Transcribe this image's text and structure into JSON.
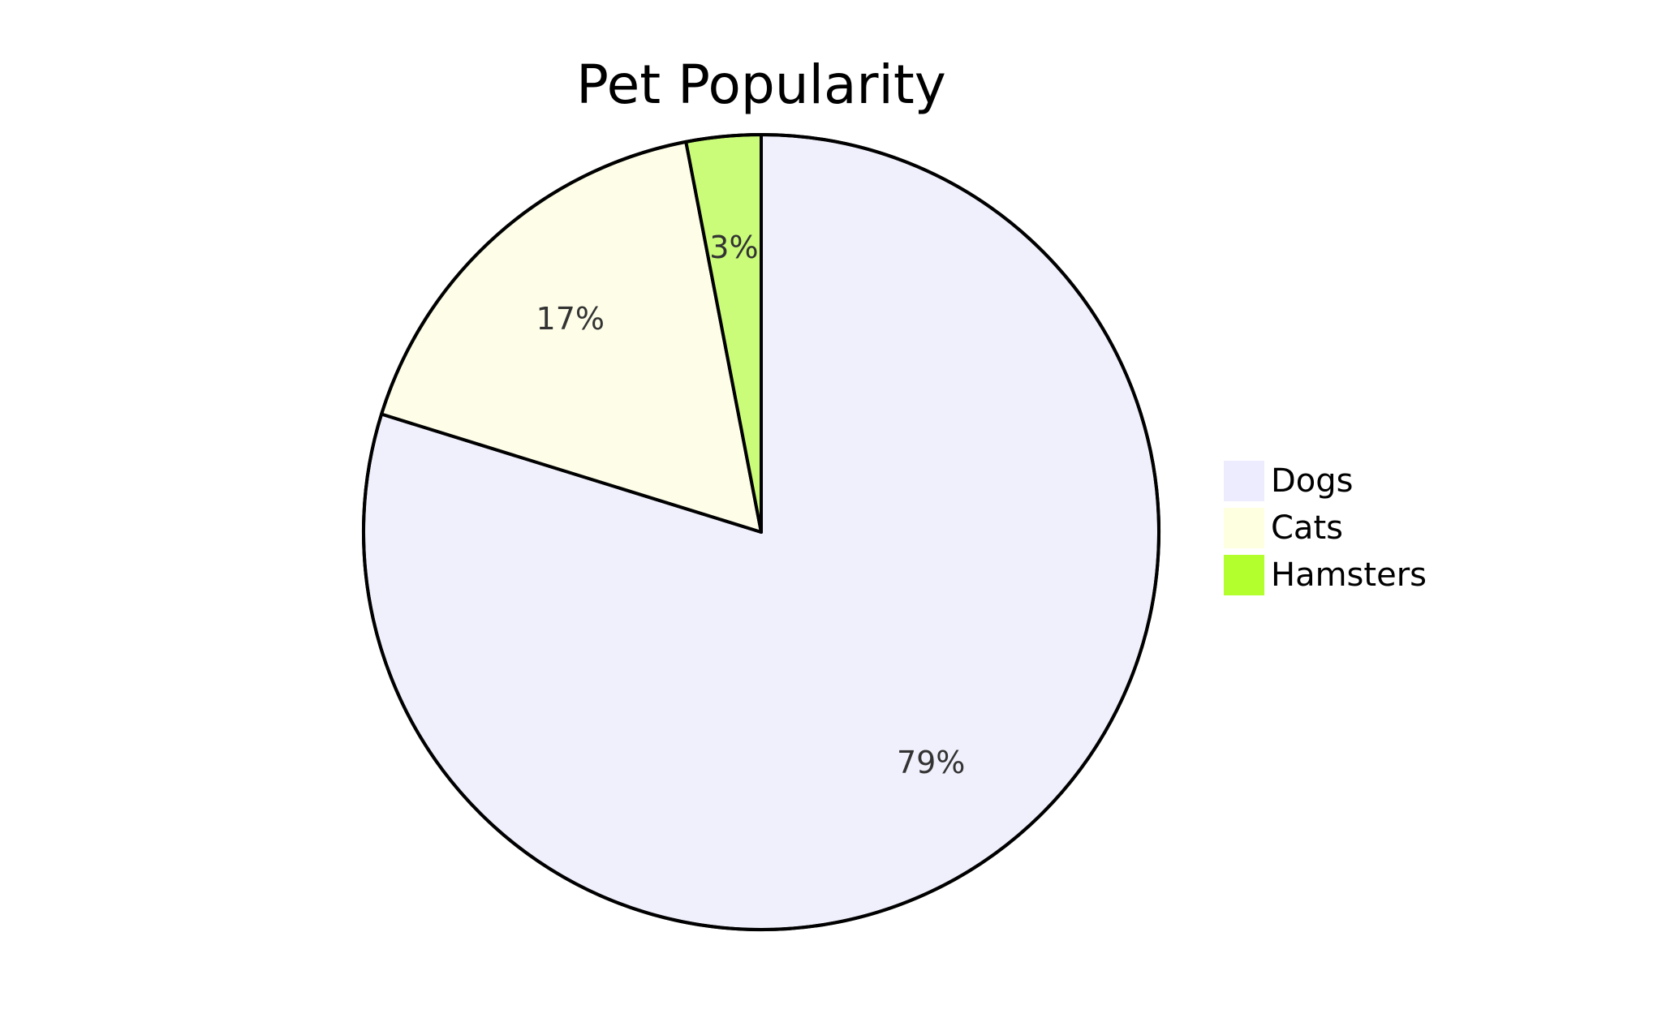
{
  "chart_data": {
    "type": "pie",
    "title": "Pet Popularity",
    "categories": [
      "Dogs",
      "Cats",
      "Hamsters"
    ],
    "values": [
      79,
      17,
      3
    ],
    "value_labels": [
      "79%",
      "17%",
      "3%"
    ],
    "colors": [
      "#f0f0fc",
      "#fdfde8",
      "#cafc7a"
    ],
    "legend_colors": [
      "#ececfe",
      "#fefee0",
      "#b3ff2e"
    ],
    "stroke_color": "#000000",
    "start_angle": "top",
    "direction": "clockwise",
    "legend_position": "right"
  }
}
